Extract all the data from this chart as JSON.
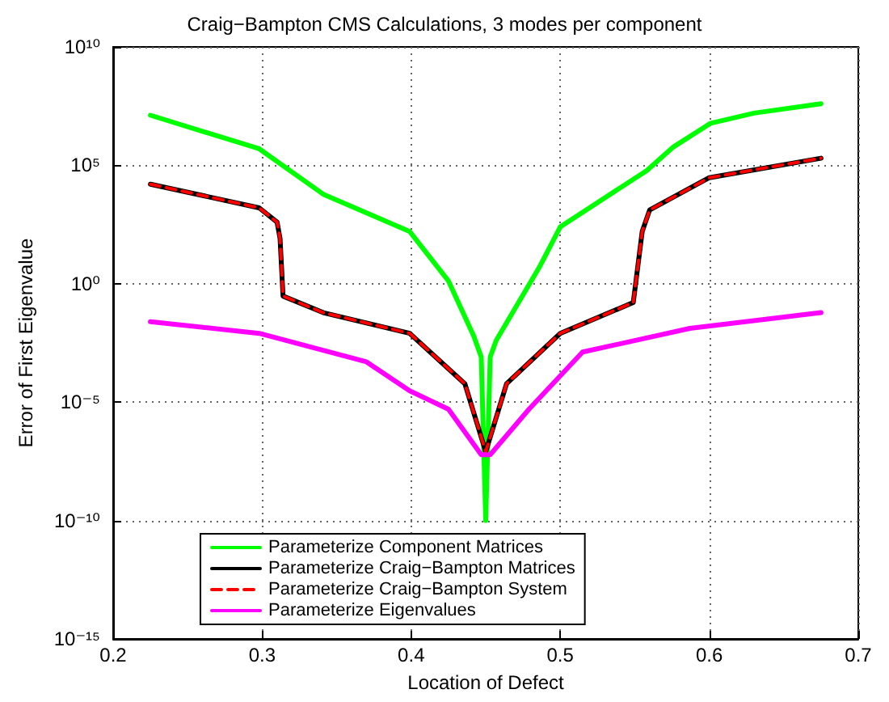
{
  "chart_data": {
    "type": "line",
    "title": "Craig−Bampton CMS Calculations, 3 modes per component",
    "xlabel": "Location of Defect",
    "ylabel": "Error of First Eigenvalue",
    "log": "y",
    "grid": true,
    "legend": "bottom left",
    "marker": "none",
    "xlim": [
      0.2,
      0.7
    ],
    "xticks": [
      0.2,
      0.3,
      0.4,
      0.5,
      0.6,
      0.7
    ],
    "ylim": [
      1e-15,
      10000000000.0
    ],
    "yticks": [
      {
        "value": 1e-15,
        "label": "10⁻¹⁵"
      },
      {
        "value": 1e-10,
        "label": "10⁻¹⁰"
      },
      {
        "value": 1e-05,
        "label": "10⁻⁵"
      },
      {
        "value": 1,
        "label": "10⁰"
      },
      {
        "value": 100000.0,
        "label": "10⁵"
      },
      {
        "value": 10000000000.0,
        "label": "10¹⁰"
      }
    ],
    "series": [
      {
        "name": "Parameterize Component Matrices",
        "color": "#00ff00",
        "line_style": "solid",
        "x": [
          0.225,
          0.298,
          0.341,
          0.399,
          0.425,
          0.442,
          0.447,
          0.45,
          0.453,
          0.457,
          0.486,
          0.5,
          0.558,
          0.576,
          0.601,
          0.63,
          0.675
        ],
        "values": [
          13000000.0,
          500000.0,
          6000.0,
          160,
          1.3,
          0.006,
          0.0008,
          1e-10,
          0.0008,
          0.004,
          5,
          250,
          60000.0,
          600000.0,
          6000000.0,
          16000000.0,
          40000000.0
        ]
      },
      {
        "name": "Parameterize Craig−Bampton Matrices",
        "color": "#000000",
        "line_style": "solid",
        "x": [
          0.225,
          0.298,
          0.31,
          0.312,
          0.314,
          0.341,
          0.399,
          0.436,
          0.45,
          0.464,
          0.5,
          0.549,
          0.555,
          0.56,
          0.6,
          0.675
        ],
        "values": [
          16000.0,
          1600.0,
          400,
          80,
          0.3,
          0.06,
          0.008,
          6e-05,
          8e-08,
          6e-05,
          0.008,
          0.16,
          160,
          1300.0,
          30000.0,
          200000.0
        ]
      },
      {
        "name": "Parameterize Craig−Bampton System",
        "color": "#ff0000",
        "line_style": "dashed",
        "x": [
          0.225,
          0.298,
          0.31,
          0.312,
          0.314,
          0.341,
          0.399,
          0.436,
          0.45,
          0.464,
          0.5,
          0.549,
          0.555,
          0.56,
          0.6,
          0.675
        ],
        "values": [
          16000.0,
          1600.0,
          400,
          80,
          0.3,
          0.06,
          0.008,
          6e-05,
          8e-08,
          6e-05,
          0.008,
          0.16,
          160,
          1300.0,
          30000.0,
          200000.0
        ]
      },
      {
        "name": "Parameterize Eigenvalues",
        "color": "#ff00ff",
        "line_style": "solid",
        "x": [
          0.225,
          0.298,
          0.37,
          0.399,
          0.425,
          0.447,
          0.453,
          0.479,
          0.515,
          0.587,
          0.675
        ],
        "values": [
          0.025,
          0.008,
          0.0005,
          3e-05,
          5e-06,
          6e-08,
          6e-08,
          5e-06,
          0.0013,
          0.013,
          0.06
        ]
      }
    ]
  }
}
